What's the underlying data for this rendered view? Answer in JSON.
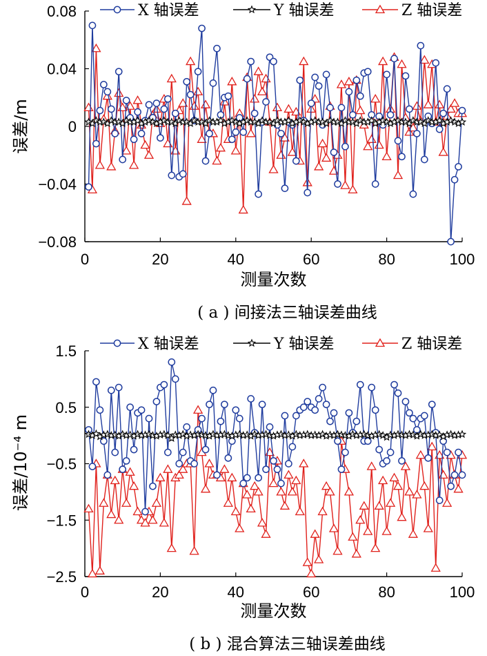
{
  "chart_data": [
    {
      "type": "line",
      "caption": "( a ) 间接法三轴误差曲线",
      "xlabel": "测量次数",
      "ylabel": "误差/m",
      "xlim": [
        0,
        100
      ],
      "ylim": [
        -0.08,
        0.08
      ],
      "xticks": [
        "0",
        "20",
        "40",
        "60",
        "80",
        "100"
      ],
      "yticks": [
        "0.08",
        "0.04",
        "0",
        "−0.04",
        "−0.08"
      ],
      "grid": false,
      "legend_position": "top",
      "series": [
        {
          "name": "X 轴误差",
          "color": "#1f3c9e",
          "marker": "circle",
          "values": [
            -0.042,
            0.07,
            -0.012,
            0.011,
            0.029,
            0.024,
            0.012,
            -0.005,
            0.038,
            -0.023,
            0.018,
            0.006,
            -0.009,
            0.01,
            -0.005,
            0.004,
            0.015,
            0.006,
            0.016,
            -0.008,
            0.012,
            0.019,
            -0.034,
            0.009,
            -0.035,
            -0.033,
            0.031,
            0.022,
            0.004,
            0.038,
            0.068,
            -0.024,
            -0.005,
            0.03,
            0.054,
            0.008,
            0.02,
            0.021,
            -0.009,
            -0.004,
            0.006,
            -0.004,
            0.033,
            0.045,
            0.009,
            -0.047,
            0.003,
            0.017,
            0.048,
            0.045,
            0.001,
            -0.005,
            -0.043,
            0.003,
            0.001,
            -0.024,
            0.032,
            0.004,
            -0.046,
            0.016,
            0.034,
            0.028,
            0.001,
            0.036,
            0.013,
            -0.018,
            -0.04,
            0.013,
            -0.014,
            0.024,
            0.008,
            0.032,
            0.021,
            0.037,
            0.038,
            0.008,
            -0.04,
            0.007,
            0.001,
            0.036,
            0.008,
            0.047,
            -0.01,
            -0.021,
            0.035,
            0.012,
            -0.047,
            -0.005,
            0.056,
            -0.023,
            0.007,
            0.002,
            0.044,
            -0.002,
            0.009,
            0.026,
            -0.08,
            -0.037,
            -0.028,
            0.011
          ]
        },
        {
          "name": "Y 轴误差",
          "color": "#000000",
          "marker": "star",
          "values": [
            0.003,
            0.002,
            0.004,
            0.003,
            0.003,
            0.002,
            0.004,
            0.003,
            0.003,
            0.002,
            0.004,
            0.003,
            0.003,
            0.004,
            0.002,
            0.003,
            0.004,
            0.003,
            0.002,
            0.003,
            0.004,
            0.003,
            0.003,
            0.002,
            0.004,
            0.003,
            0.003,
            0.002,
            0.004,
            0.003,
            0.003,
            0.002,
            0.004,
            0.003,
            0.003,
            0.004,
            0.002,
            0.003,
            0.004,
            0.003,
            0.002,
            0.003,
            0.004,
            0.003,
            0.003,
            0.002,
            0.004,
            0.003,
            0.003,
            0.002,
            0.004,
            0.003,
            0.003,
            0.004,
            0.002,
            0.003,
            0.004,
            0.003,
            0.002,
            0.003,
            0.004,
            0.003,
            0.003,
            0.002,
            0.004,
            0.003,
            0.003,
            0.002,
            0.004,
            0.003,
            0.003,
            0.002,
            0.004,
            0.003,
            0.003,
            0.004,
            0.002,
            0.003,
            0.004,
            0.003,
            0.002,
            0.003,
            0.004,
            0.003,
            0.003,
            0.002,
            0.004,
            0.003,
            0.003,
            0.002,
            0.004,
            0.003,
            0.003,
            0.004,
            0.002,
            0.003,
            0.004,
            0.003,
            0.002,
            0.003
          ]
        },
        {
          "name": "Z 轴误差",
          "color": "#e0201b",
          "marker": "triangle",
          "values": [
            0.013,
            -0.044,
            0.054,
            -0.027,
            0.005,
            0.021,
            -0.028,
            -0.003,
            0.023,
            0.013,
            -0.017,
            0.014,
            -0.027,
            0.018,
            0.001,
            -0.013,
            -0.02,
            0.008,
            0.012,
            0.002,
            0.019,
            -0.012,
            0.033,
            -0.017,
            0.011,
            0.016,
            -0.052,
            0.045,
            0.014,
            0.024,
            -0.009,
            0.015,
            -0.004,
            -0.005,
            -0.024,
            -0.015,
            0.017,
            -0.009,
            0.031,
            -0.017,
            0.009,
            -0.058,
            0.034,
            -0.005,
            0.019,
            0.038,
            0.024,
            0.033,
            0.003,
            -0.03,
            0.013,
            -0.02,
            -0.008,
            0.012,
            -0.018,
            0.01,
            -0.024,
            0.045,
            -0.039,
            0.012,
            0.019,
            -0.028,
            -0.012,
            -0.022,
            0.014,
            -0.031,
            -0.02,
            0.029,
            -0.041,
            0.031,
            -0.044,
            0.032,
            0.011,
            0.001,
            -0.014,
            -0.009,
            0.019,
            -0.013,
            0.045,
            -0.021,
            0.012,
            0.048,
            -0.034,
            0.043,
            0.006,
            -0.004,
            -0.001,
            0.014,
            0.004,
            0.046,
            0.015,
            0.043,
            0.003,
            0.015,
            -0.018,
            0.007,
            0.012,
            0.016,
            0.009,
            0.009
          ]
        }
      ]
    },
    {
      "type": "line",
      "caption": "( b ) 混合算法三轴误差曲线",
      "xlabel": "测量次数",
      "ylabel": "误差/10⁻⁴ m",
      "xlim": [
        0,
        100
      ],
      "ylim": [
        -2.5,
        1.5
      ],
      "xticks": [
        "0",
        "20",
        "40",
        "60",
        "80",
        "100"
      ],
      "yticks": [
        "1.5",
        "0.5",
        "−0.5",
        "−1.5",
        "−2.5"
      ],
      "grid": false,
      "legend_position": "top",
      "series": [
        {
          "name": "X 轴误差",
          "color": "#1f3c9e",
          "marker": "circle",
          "values": [
            0.1,
            -0.55,
            0.95,
            0.45,
            -0.1,
            -0.7,
            0.8,
            -0.3,
            0.85,
            -0.6,
            -0.45,
            0.5,
            -0.25,
            0.4,
            0.45,
            -1.35,
            0.3,
            -0.9,
            0.6,
            0.85,
            0.9,
            -0.3,
            1.3,
            1.0,
            -0.5,
            -0.3,
            0.15,
            -0.45,
            -0.5,
            0.1,
            0.3,
            -0.25,
            0.55,
            0.8,
            -0.7,
            0.25,
            0.55,
            -0.4,
            -0.1,
            0.45,
            0.3,
            -0.85,
            -0.75,
            0.65,
            0.05,
            -0.75,
            0.55,
            -0.6,
            0.15,
            -0.45,
            -0.6,
            -0.85,
            0.35,
            -0.5,
            -0.2,
            0.35,
            0.45,
            0.5,
            0.6,
            0.5,
            0.45,
            0.65,
            0.85,
            0.55,
            0.25,
            0.4,
            -0.1,
            -0.6,
            -0.3,
            0.4,
            0.05,
            0.25,
            0.9,
            -0.1,
            -0.1,
            0.85,
            0.45,
            -0.25,
            -0.5,
            -0.45,
            -0.3,
            0.9,
            0.75,
            -0.45,
            0.6,
            0.4,
            0.3,
            0.1,
            0.3,
            0.35,
            -0.4,
            0.55,
            0.05,
            -1.15,
            -0.1,
            -0.3,
            -0.9,
            -0.7,
            -0.3,
            -0.7
          ]
        },
        {
          "name": "Y 轴误差",
          "color": "#000000",
          "marker": "star",
          "values": [
            0.02,
            0.0,
            0.03,
            -0.02,
            0.01,
            0.02,
            0.0,
            0.01,
            -0.01,
            0.02,
            0.0,
            0.01,
            -0.01,
            0.02,
            0.0,
            0.01,
            0.02,
            0.0,
            -0.01,
            0.01,
            0.02,
            0.0,
            -0.05,
            0.01,
            0.0,
            0.02,
            -0.01,
            0.01,
            0.0,
            0.02,
            0.01,
            0.0,
            -0.01,
            0.02,
            0.0,
            0.01,
            0.02,
            0.0,
            -0.01,
            0.01,
            0.02,
            0.0,
            0.01,
            -0.01,
            0.02,
            0.0,
            0.01,
            0.02,
            0.0,
            -0.01,
            0.01,
            0.02,
            0.0,
            0.01,
            -0.01,
            0.02,
            0.0,
            0.01,
            0.02,
            0.0,
            0.01,
            0.0,
            0.02,
            -0.01,
            0.01,
            0.0,
            0.02,
            0.01,
            0.0,
            -0.01,
            0.02,
            0.0,
            0.01,
            0.02,
            0.0,
            -0.01,
            0.01,
            0.02,
            0.0,
            -0.03,
            0.01,
            0.0,
            0.02,
            0.01,
            0.0,
            0.02,
            0.01,
            -0.01,
            0.02,
            0.0,
            0.01,
            0.02,
            0.0,
            0.01,
            -0.02,
            0.01,
            0.02,
            0.0,
            0.01,
            0.02
          ]
        },
        {
          "name": "Z 轴误差",
          "color": "#e0201b",
          "marker": "triangle",
          "values": [
            -1.3,
            -2.45,
            -0.5,
            -2.4,
            -1.2,
            -0.7,
            -1.4,
            -0.8,
            -1.5,
            -0.6,
            -1.2,
            -0.65,
            -0.9,
            -1.35,
            -1.5,
            -1.55,
            -1.35,
            -1.5,
            -1.2,
            -0.75,
            -1.55,
            -0.6,
            -2.0,
            -0.75,
            -0.7,
            -0.6,
            -0.5,
            -0.5,
            -2.05,
            0.45,
            -0.3,
            -0.95,
            -0.5,
            -0.7,
            -0.7,
            -0.75,
            -0.6,
            -1.2,
            -0.75,
            -1.35,
            -1.65,
            -0.85,
            -1.05,
            -1.3,
            -0.9,
            -1.0,
            -1.55,
            -1.75,
            -0.3,
            -0.85,
            -0.45,
            -1.0,
            -1.25,
            -0.7,
            -1.0,
            -0.8,
            -1.35,
            -0.5,
            -2.25,
            -2.45,
            -1.75,
            -2.2,
            -1.35,
            -0.9,
            -1.0,
            -1.65,
            -2.05,
            -0.1,
            -0.6,
            -1.0,
            -1.8,
            -2.1,
            -1.5,
            -1.25,
            -1.7,
            -0.55,
            -2.0,
            -1.25,
            -0.8,
            -1.7,
            -1.2,
            -0.75,
            -0.9,
            -1.45,
            -0.55,
            -1.0,
            -1.75,
            -1.05,
            -0.35,
            -0.9,
            -1.65,
            -0.2,
            -2.35,
            -0.35,
            -0.7,
            -1.2,
            -0.35,
            -0.7,
            -0.95,
            -0.35
          ]
        }
      ]
    }
  ]
}
